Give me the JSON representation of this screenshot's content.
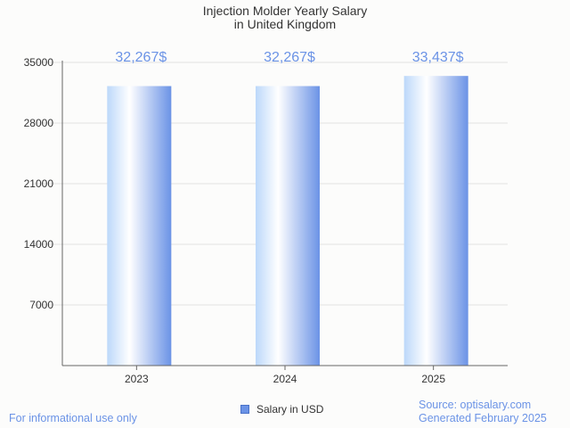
{
  "chart_data": {
    "type": "bar",
    "title_line1": "Injection Molder Yearly Salary",
    "title_line2": "in United Kingdom",
    "categories": [
      "2023",
      "2024",
      "2025"
    ],
    "series": [
      {
        "name": "Salary in USD",
        "values": [
          32267,
          32267,
          33437
        ],
        "labels": [
          "32,267$",
          "32,267$",
          "33,437$"
        ]
      }
    ],
    "ylim": [
      0,
      35000
    ],
    "yticks": [
      7000,
      14000,
      21000,
      28000,
      35000
    ],
    "grid": true,
    "legend_position": "bottom-center",
    "bar_color_light": "#ffffff",
    "bar_color_mid": "#bcd8fa",
    "bar_color_dark": "#6b93e6"
  },
  "footer": {
    "disclaimer": "For informational use only",
    "source": "Source: optisalary.com",
    "generated": "Generated February 2025"
  }
}
